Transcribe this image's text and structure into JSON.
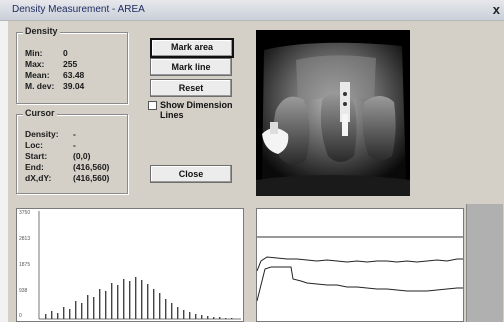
{
  "window": {
    "title": "Density Measurement - AREA",
    "close_glyph": "x"
  },
  "density": {
    "group_label": "Density",
    "rows": [
      {
        "label": "Min:",
        "value": "0"
      },
      {
        "label": "Max:",
        "value": "255"
      },
      {
        "label": "Mean:",
        "value": "63.48"
      },
      {
        "label": "M. dev:",
        "value": "39.04"
      }
    ]
  },
  "cursor": {
    "group_label": "Cursor",
    "rows": [
      {
        "label": "Density:",
        "value": "-"
      },
      {
        "label": "Loc:",
        "value": "-"
      },
      {
        "label": "Start:",
        "value": "(0,0)"
      },
      {
        "label": "End:",
        "value": "(416,560)"
      },
      {
        "label": "dX,dY:",
        "value": "(416,560)"
      }
    ]
  },
  "buttons": {
    "mark_area": "Mark area",
    "mark_line": "Mark line",
    "reset": "Reset",
    "close": "Close"
  },
  "show_dimension": {
    "label_line1": "Show Dimension",
    "label_line2": "Lines",
    "checked": false
  },
  "histogram": {
    "y_ticks": [
      "3750",
      "2813",
      "1875",
      "938",
      "0"
    ],
    "bars": [
      0.05,
      0.08,
      0.06,
      0.12,
      0.1,
      0.18,
      0.16,
      0.24,
      0.22,
      0.3,
      0.28,
      0.36,
      0.34,
      0.4,
      0.38,
      0.42,
      0.39,
      0.35,
      0.3,
      0.26,
      0.2,
      0.16,
      0.12,
      0.09,
      0.07,
      0.05,
      0.04,
      0.03,
      0.02,
      0.02,
      0.01,
      0.01
    ]
  },
  "colors": {
    "window_bg": "#d4d0c8",
    "title_text": "#1b2a5e",
    "plot_bg": "#ffffff",
    "xray_bg": "#000000"
  }
}
